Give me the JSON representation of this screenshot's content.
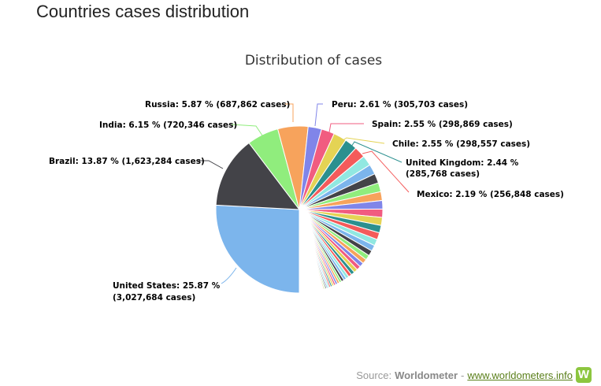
{
  "page_title": "Countries cases distribution",
  "credit": {
    "prefix": "Source:",
    "source": "Worldometer",
    "separator": "-",
    "link": "www.worldometers.info",
    "logo_letter": "W"
  },
  "chart_data": {
    "type": "pie",
    "title": "Distribution of cases",
    "start_angle_deg": 180,
    "palette": [
      "#7cb5ec",
      "#434348",
      "#90ed7d",
      "#f7a35c",
      "#8085e9",
      "#f15c80",
      "#e4d354",
      "#2b908f",
      "#f45b5b",
      "#91e8e1"
    ],
    "labeled": [
      {
        "name": "United States",
        "percent": 25.87,
        "cases": "3,027,684",
        "label_line1": "United States: 25.87 %",
        "label_line2": "(3,027,684 cases)"
      },
      {
        "name": "Brazil",
        "percent": 13.87,
        "cases": "1,623,284",
        "label": "Brazil: 13.87 % (1,623,284 cases)"
      },
      {
        "name": "India",
        "percent": 6.15,
        "cases": "720,346",
        "label": "India: 6.15 % (720,346 cases)"
      },
      {
        "name": "Russia",
        "percent": 5.87,
        "cases": "687,862",
        "label": "Russia: 5.87 % (687,862 cases)"
      },
      {
        "name": "Peru",
        "percent": 2.61,
        "cases": "305,703",
        "label": "Peru: 2.61 % (305,703 cases)"
      },
      {
        "name": "Spain",
        "percent": 2.55,
        "cases": "298,869",
        "label": "Spain: 2.55 % (298,869 cases)"
      },
      {
        "name": "Chile",
        "percent": 2.55,
        "cases": "298,557",
        "label": "Chile: 2.55 % (298,557 cases)"
      },
      {
        "name": "United Kingdom",
        "percent": 2.44,
        "cases": "285,768",
        "label_line1": "United Kingdom: 2.44 %",
        "label_line2": "(285,768 cases)"
      },
      {
        "name": "Mexico",
        "percent": 2.19,
        "cases": "256,848",
        "label": "Mexico: 2.19 % (256,848 cases)"
      }
    ],
    "unlabeled_percents": [
      2.0,
      1.95,
      1.85,
      1.75,
      1.7,
      1.65,
      1.6,
      1.55,
      1.45,
      1.35,
      1.25,
      1.15,
      1.05,
      0.95,
      0.9,
      0.85,
      0.8,
      0.75,
      0.7,
      0.65,
      0.6,
      0.55,
      0.5,
      0.45,
      0.42,
      0.4,
      0.38,
      0.35,
      0.32,
      0.3,
      0.28,
      0.26,
      0.24,
      0.22,
      0.2,
      0.15,
      0.15,
      0.15,
      0.15,
      0.15,
      0.15,
      0.15,
      0.15,
      0.15,
      0.15,
      0.15,
      0.15,
      0.15,
      0.15,
      0.15,
      0.15,
      0.15,
      0.15,
      0.15,
      0.15,
      0.15,
      0.15,
      0.15,
      0.15,
      0.15,
      0.15,
      0.15,
      0.15,
      0.15,
      0.15,
      0.15
    ]
  }
}
